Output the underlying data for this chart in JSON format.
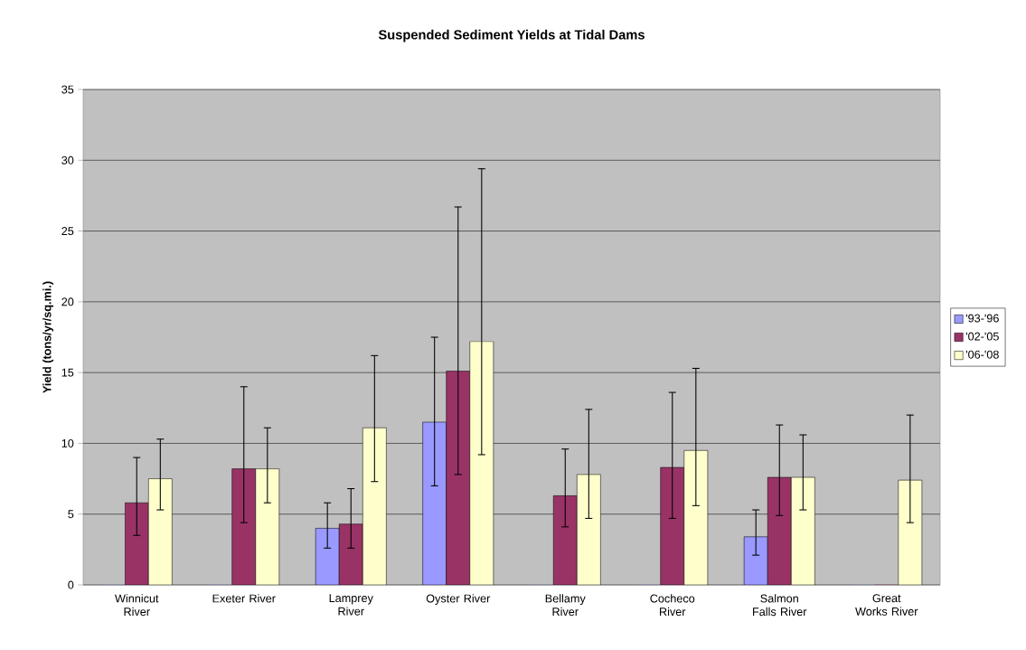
{
  "chart_data": {
    "type": "bar",
    "title": "Suspended Sediment Yields at Tidal Dams",
    "ylabel": "Yield (tons/yr/sq.mi.)",
    "categories": [
      "Winnicut River",
      "Exeter River",
      "Lamprey River",
      "Oyster River",
      "Bellamy River",
      "Cocheco River",
      "Salmon Falls River",
      "Great Works River"
    ],
    "series": [
      {
        "name": "'93-'96",
        "color": "#9999ff",
        "values": [
          0,
          0,
          4.0,
          11.5,
          0,
          0,
          3.4,
          0
        ],
        "errors": [
          null,
          null,
          [
            2.6,
            5.8
          ],
          [
            7.0,
            17.5
          ],
          null,
          null,
          [
            2.1,
            5.3
          ],
          null
        ]
      },
      {
        "name": "'02-'05",
        "color": "#993366",
        "values": [
          5.8,
          8.2,
          4.3,
          15.1,
          6.3,
          8.3,
          7.6,
          0
        ],
        "errors": [
          [
            3.5,
            9.0
          ],
          [
            4.4,
            14.0
          ],
          [
            2.6,
            6.8
          ],
          [
            7.8,
            26.7
          ],
          [
            4.1,
            9.6
          ],
          [
            4.7,
            13.6
          ],
          [
            4.9,
            11.3
          ],
          null
        ]
      },
      {
        "name": "'06-'08",
        "color": "#ffffcc",
        "values": [
          7.5,
          8.2,
          11.1,
          17.2,
          7.8,
          9.5,
          7.6,
          7.4
        ],
        "errors": [
          [
            5.3,
            10.3
          ],
          [
            5.8,
            11.1
          ],
          [
            7.3,
            16.2
          ],
          [
            9.2,
            29.4
          ],
          [
            4.7,
            12.4
          ],
          [
            5.6,
            15.3
          ],
          [
            5.3,
            10.6
          ],
          [
            4.4,
            12.0
          ]
        ]
      }
    ],
    "ylim": [
      0,
      35
    ],
    "yticks": [
      0,
      5,
      10,
      15,
      20,
      25,
      30,
      35
    ],
    "grid": "y",
    "legend": "right"
  }
}
